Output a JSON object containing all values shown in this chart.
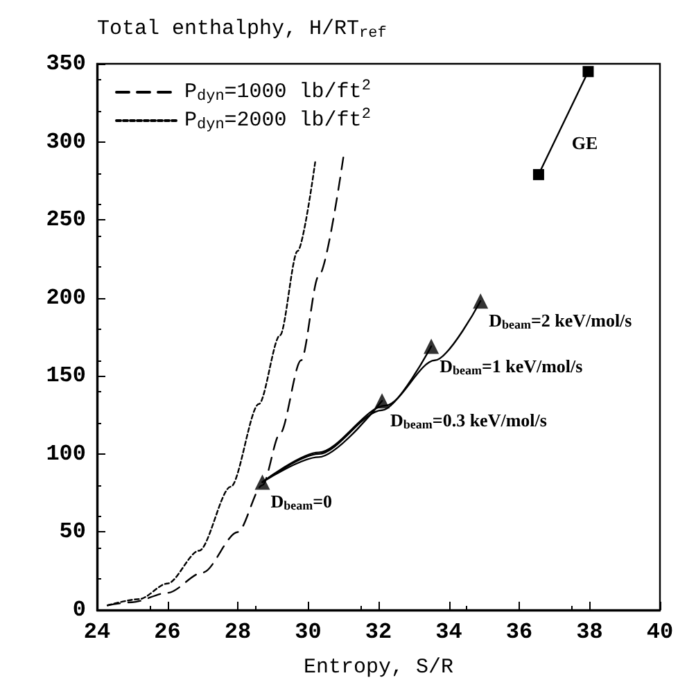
{
  "chart_data": {
    "type": "line",
    "ylabel": "Total enthalphy, H/RT$_{ref}$",
    "xlabel": "Entropy, S/R",
    "xlim": [
      24,
      40
    ],
    "ylim": [
      0,
      350
    ],
    "xticks": [
      24,
      26,
      28,
      30,
      32,
      34,
      36,
      38,
      40
    ],
    "yticks": [
      0,
      50,
      100,
      150,
      200,
      250,
      300,
      350
    ],
    "grid": false,
    "legend": "top left",
    "series": [
      {
        "name": "P$_{dyn}$=1000 lb/ft$^{2}$",
        "line_style": "dashed",
        "marker": "none",
        "color": "#000000",
        "x": [
          24.3,
          25,
          26,
          27,
          28,
          28.7,
          29.2,
          29.8,
          30.3,
          31.0
        ],
        "values": [
          3,
          5,
          11,
          24,
          50,
          80,
          113,
          160,
          214,
          290
        ]
      },
      {
        "name": "P$_{dyn}$=2000 lb/ft$^{2}$",
        "line_style": "dotted",
        "marker": "none",
        "color": "#000000",
        "x": [
          24.3,
          25.2,
          26,
          26.9,
          27.8,
          28.6,
          29.2,
          29.7,
          30.2
        ],
        "values": [
          3,
          7,
          17,
          38,
          79,
          132,
          176,
          230,
          287
        ]
      },
      {
        "type": "line",
        "line_style": "solid",
        "marker": "none",
        "color": "#000000",
        "x": [
          28.7,
          30.3,
          32.1
        ],
        "values": [
          82,
          98,
          134
        ]
      },
      {
        "type": "line",
        "line_style": "solid",
        "marker": "none",
        "color": "#000000",
        "x": [
          28.7,
          30.3,
          32.1,
          33.5
        ],
        "values": [
          82,
          100,
          128,
          169
        ]
      },
      {
        "type": "line",
        "line_style": "solid",
        "marker": "none",
        "color": "#000000",
        "x": [
          28.7,
          30.3,
          32.2,
          33.6,
          34.9
        ],
        "values": [
          82,
          101,
          131,
          160,
          198
        ]
      },
      {
        "type": "scatter",
        "marker": "triangle",
        "color": "#000000",
        "x": [
          28.7,
          32.1,
          33.5,
          34.9
        ],
        "values": [
          82,
          134,
          169,
          198
        ]
      },
      {
        "type": "line",
        "line_style": "solid",
        "marker": "square",
        "color": "#000000",
        "x": [
          36.55,
          37.96
        ],
        "values": [
          279,
          345
        ]
      }
    ],
    "annotations": [
      {
        "text": "D$_{beam}$=2 keV/mol/s",
        "x": 34.9,
        "y": 198
      },
      {
        "text": "D$_{beam}$=1 keV/mol/s",
        "x": 33.5,
        "y": 169
      },
      {
        "text": "D$_{beam}$=0.3 keV/mol/s",
        "x": 32.1,
        "y": 134
      },
      {
        "text": "D$_{beam}$=0",
        "x": 28.7,
        "y": 82
      },
      {
        "text": "GE",
        "x": 37.255,
        "y": 312
      }
    ]
  }
}
